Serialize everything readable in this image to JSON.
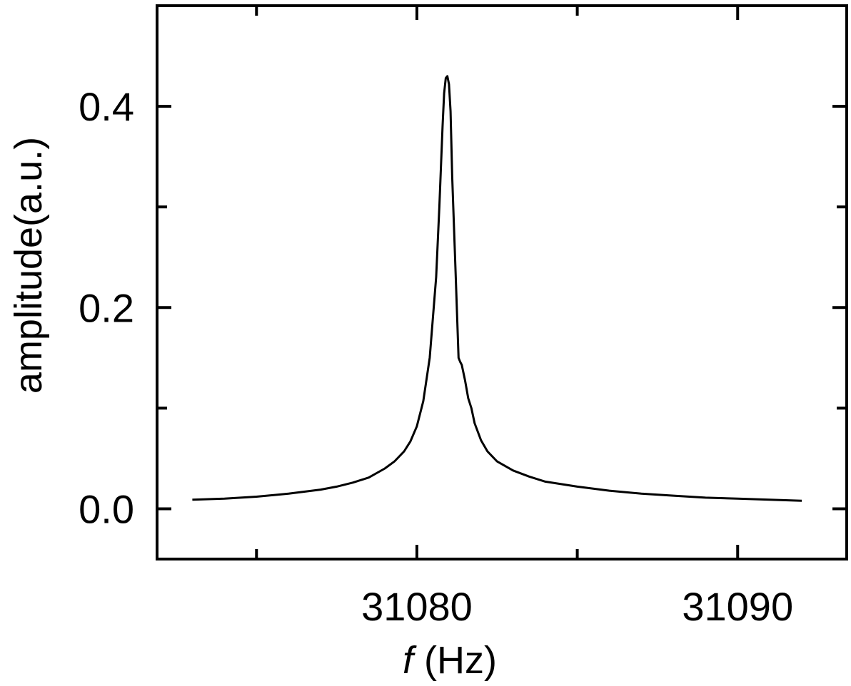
{
  "chart_data": {
    "type": "line",
    "title": "",
    "xlabel": {
      "symbol": "f",
      "unit": " (Hz)"
    },
    "ylabel": "amplitude(a.u.)",
    "xlim": [
      31071.9,
      31093.4
    ],
    "ylim": [
      -0.05,
      0.5
    ],
    "x_ticks_major": [
      31080,
      31090
    ],
    "x_tick_labels": [
      "31080",
      "31090"
    ],
    "x_ticks_minor": [
      31075,
      31085
    ],
    "y_ticks_major": [
      0.0,
      0.2,
      0.4
    ],
    "y_tick_labels": [
      "0.0",
      "0.2",
      "0.4"
    ],
    "y_ticks_minor": [
      0.1,
      0.3
    ],
    "grid": false,
    "legend": "none",
    "line_color": "#000000",
    "series": [
      {
        "x": [
          31073.0,
          31074.0,
          31075.0,
          31076.0,
          31077.0,
          31077.5,
          31078.0,
          31078.5,
          31079.0,
          31079.3,
          31079.6,
          31079.8,
          31080.0,
          31080.2,
          31080.4,
          31080.6,
          31080.7,
          31080.8,
          31080.85,
          31080.9,
          31080.95,
          31081.0,
          31081.05,
          31081.1,
          31081.2,
          31081.3,
          31081.35,
          31081.4,
          31081.5,
          31081.6,
          31081.7,
          31081.8,
          31082.0,
          31082.2,
          31082.5,
          31083.0,
          31083.5,
          31084.0,
          31085.0,
          31086.0,
          31087.0,
          31088.0,
          31089.0,
          31090.0,
          31091.0,
          31092.0
        ],
        "y": [
          0.009,
          0.01,
          0.012,
          0.015,
          0.019,
          0.022,
          0.026,
          0.031,
          0.04,
          0.047,
          0.057,
          0.067,
          0.082,
          0.107,
          0.15,
          0.23,
          0.3,
          0.38,
          0.413,
          0.428,
          0.43,
          0.422,
          0.395,
          0.33,
          0.24,
          0.15,
          0.146,
          0.143,
          0.128,
          0.11,
          0.1,
          0.085,
          0.068,
          0.057,
          0.047,
          0.038,
          0.032,
          0.027,
          0.022,
          0.018,
          0.015,
          0.013,
          0.011,
          0.01,
          0.009,
          0.008
        ]
      }
    ]
  }
}
